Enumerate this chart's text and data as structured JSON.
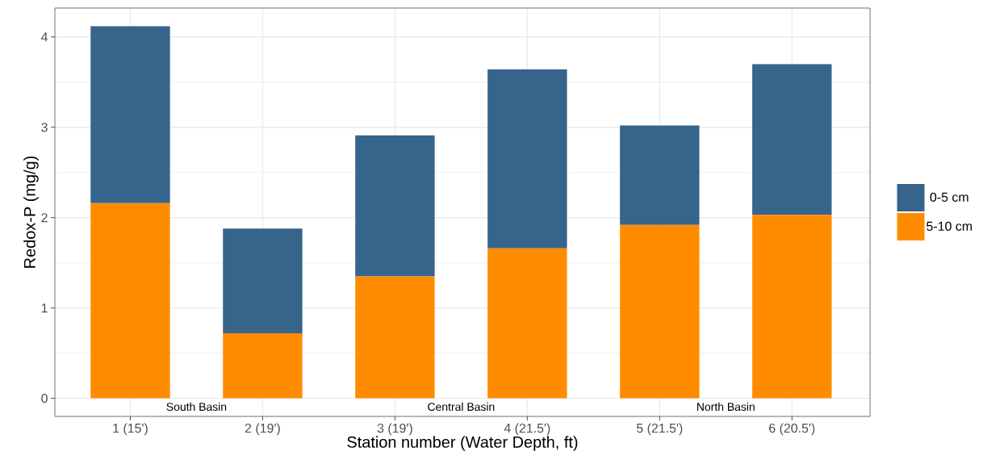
{
  "chart_data": {
    "type": "bar",
    "stacked": true,
    "xlabel": "Station number (Water Depth, ft)",
    "ylabel": "Redox-P (mg/g)",
    "categories": [
      "1 (15')",
      "2 (19')",
      "3 (19')",
      "4 (21.5')",
      "5 (21.5')",
      "6 (20.5')"
    ],
    "series": [
      {
        "name": "5-10 cm",
        "color": "#ff8c00",
        "values": [
          2.16,
          0.72,
          1.35,
          1.66,
          1.92,
          2.03
        ]
      },
      {
        "name": "0-5 cm",
        "color": "#37648b",
        "values": [
          1.96,
          1.16,
          1.56,
          1.98,
          1.1,
          1.67
        ]
      }
    ],
    "ylim": [
      -0.2,
      4.32
    ],
    "yticks": [
      0,
      1,
      2,
      3,
      4
    ],
    "grid": true,
    "legend": "right",
    "annotations": [
      "South Basin",
      "Central Basin",
      "North Basin"
    ]
  }
}
